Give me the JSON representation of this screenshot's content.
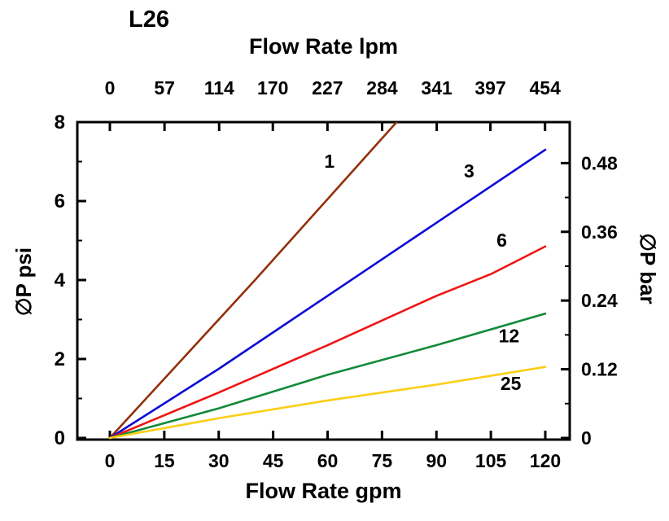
{
  "chart_data": {
    "type": "line",
    "title": "L26",
    "grid": false,
    "legend": "none (inline series labels)",
    "axes": {
      "top": {
        "label": "Flow Rate lpm",
        "tick_values": [
          0,
          57,
          114,
          170,
          227,
          284,
          341,
          397,
          454
        ],
        "tick_labels": [
          "0",
          "57",
          "114",
          "170",
          "227",
          "284",
          "341",
          "397",
          "454"
        ],
        "lpm_to_gpm": 0.264172
      },
      "bottom": {
        "label": "Flow Rate gpm",
        "tick_values": [
          0,
          15,
          30,
          45,
          60,
          75,
          90,
          105,
          120
        ],
        "tick_labels": [
          "0",
          "15",
          "30",
          "45",
          "60",
          "75",
          "90",
          "105",
          "120"
        ],
        "range": [
          0,
          120
        ]
      },
      "left": {
        "label": "∅P psi",
        "tick_values": [
          0,
          2,
          4,
          6,
          8
        ],
        "tick_labels": [
          "0",
          "2",
          "4",
          "6",
          "8"
        ],
        "minor_values": [
          1,
          3,
          5,
          7
        ],
        "range": [
          0,
          8
        ]
      },
      "right": {
        "label": "∅P bar",
        "tick_values": [
          0,
          0.12,
          0.24,
          0.36,
          0.48
        ],
        "tick_labels": [
          "0",
          "0.12",
          "0.24",
          "0.36",
          "0.48"
        ],
        "minor_values": [
          0.06,
          0.18,
          0.3,
          0.42
        ],
        "bar_to_psi": 14.5038
      }
    },
    "series": [
      {
        "name": "1",
        "color": "#933009",
        "points_gpm_psi": [
          [
            0,
            0
          ],
          [
            20,
            2.0
          ],
          [
            40,
            4.0
          ],
          [
            60,
            6.05
          ],
          [
            80,
            8.1
          ]
        ],
        "label_at_gpm_psi": [
          60.5,
          6.85
        ]
      },
      {
        "name": "3",
        "color": "#0c0cd6",
        "points_gpm_psi": [
          [
            0,
            0
          ],
          [
            30,
            1.75
          ],
          [
            60,
            3.6
          ],
          [
            90,
            5.45
          ],
          [
            120,
            7.3
          ]
        ],
        "label_at_gpm_psi": [
          99,
          6.6
        ]
      },
      {
        "name": "6",
        "color": "#ee1515",
        "points_gpm_psi": [
          [
            0,
            0
          ],
          [
            30,
            1.15
          ],
          [
            60,
            2.35
          ],
          [
            90,
            3.6
          ],
          [
            105,
            4.15
          ],
          [
            120,
            4.85
          ]
        ],
        "label_at_gpm_psi": [
          108,
          4.85
        ]
      },
      {
        "name": "12",
        "color": "#128a38",
        "points_gpm_psi": [
          [
            0,
            0
          ],
          [
            30,
            0.75
          ],
          [
            60,
            1.6
          ],
          [
            90,
            2.35
          ],
          [
            120,
            3.15
          ]
        ],
        "label_at_gpm_psi": [
          110,
          2.42
        ]
      },
      {
        "name": "25",
        "color": "#fbce16",
        "points_gpm_psi": [
          [
            0,
            0
          ],
          [
            30,
            0.5
          ],
          [
            60,
            0.95
          ],
          [
            90,
            1.35
          ],
          [
            120,
            1.8
          ]
        ],
        "label_at_gpm_psi": [
          110.5,
          1.22
        ]
      }
    ]
  }
}
